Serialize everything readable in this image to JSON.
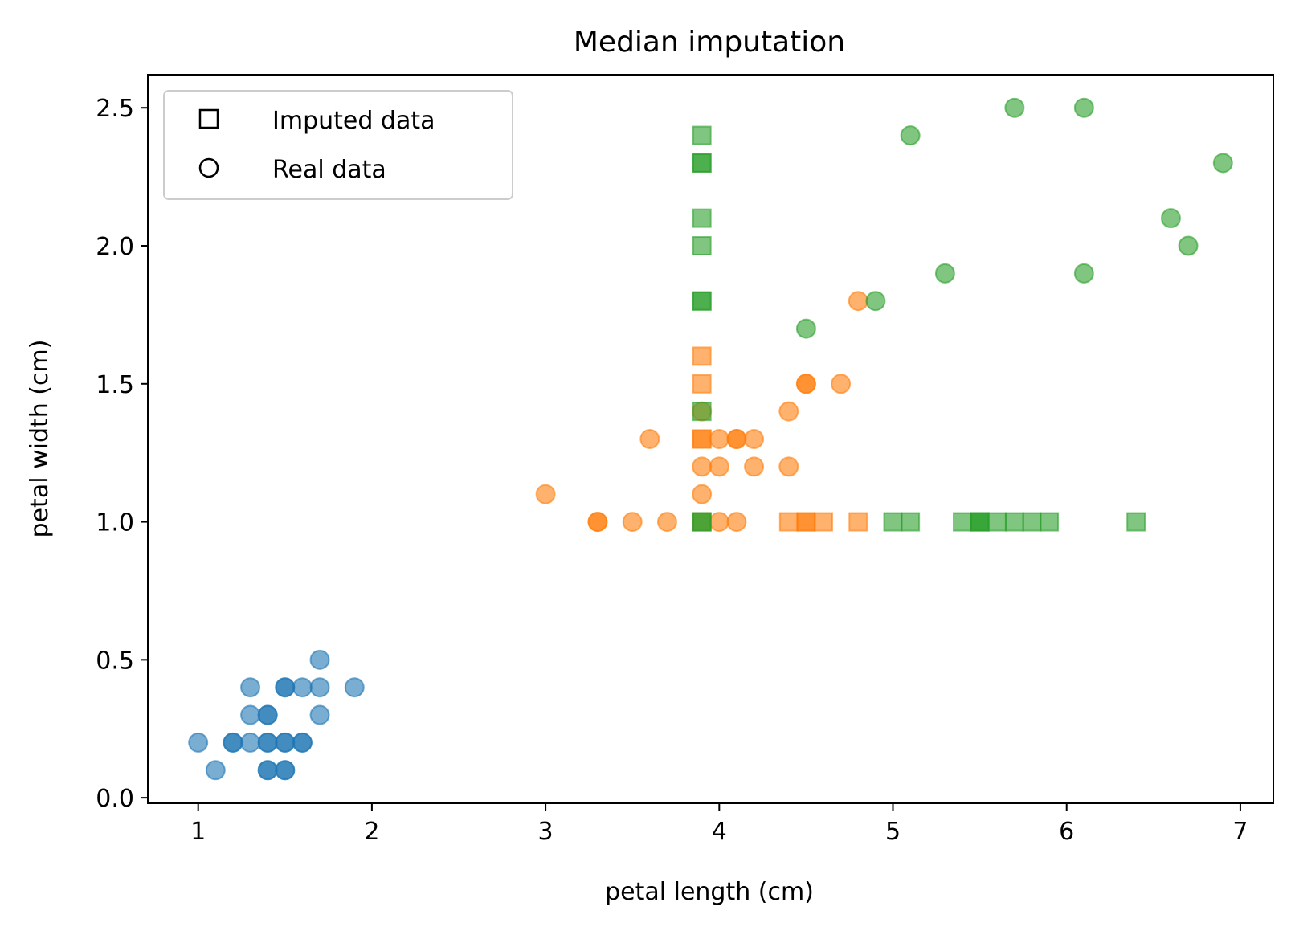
{
  "chart_data": {
    "type": "scatter",
    "title": "Median imputation",
    "xlabel": "petal length (cm)",
    "ylabel": "petal width (cm)",
    "xlim": [
      0.71,
      7.19
    ],
    "ylim": [
      -0.02,
      2.62
    ],
    "xticks": [
      1,
      2,
      3,
      4,
      5,
      6,
      7
    ],
    "yticks": [
      0.0,
      0.5,
      1.0,
      1.5,
      2.0,
      2.5
    ],
    "grid": false,
    "legend": {
      "location": "upper-left",
      "entries": [
        {
          "marker": "square",
          "label": "Imputed data"
        },
        {
          "marker": "circle",
          "label": "Real data"
        }
      ]
    },
    "colors": {
      "setosa": "#1f77b4",
      "versicolor": "#ff7f0e",
      "virginica": "#2ca02c"
    },
    "series": [
      {
        "marker": "circle",
        "color": "#1f77b4",
        "points": [
          [
            1.0,
            0.2
          ],
          [
            1.1,
            0.1
          ],
          [
            1.2,
            0.2
          ],
          [
            1.2,
            0.2
          ],
          [
            1.3,
            0.2
          ],
          [
            1.3,
            0.3
          ],
          [
            1.3,
            0.4
          ],
          [
            1.4,
            0.2
          ],
          [
            1.4,
            0.2
          ],
          [
            1.4,
            0.3
          ],
          [
            1.4,
            0.3
          ],
          [
            1.4,
            0.1
          ],
          [
            1.4,
            0.1
          ],
          [
            1.5,
            0.2
          ],
          [
            1.5,
            0.2
          ],
          [
            1.5,
            0.4
          ],
          [
            1.5,
            0.4
          ],
          [
            1.5,
            0.1
          ],
          [
            1.5,
            0.1
          ],
          [
            1.6,
            0.2
          ],
          [
            1.6,
            0.2
          ],
          [
            1.6,
            0.4
          ],
          [
            1.7,
            0.5
          ],
          [
            1.7,
            0.4
          ],
          [
            1.7,
            0.3
          ],
          [
            1.9,
            0.4
          ]
        ]
      },
      {
        "marker": "circle",
        "color": "#ff7f0e",
        "points": [
          [
            3.0,
            1.1
          ],
          [
            3.3,
            1.0
          ],
          [
            3.3,
            1.0
          ],
          [
            3.5,
            1.0
          ],
          [
            3.6,
            1.3
          ],
          [
            3.7,
            1.0
          ],
          [
            3.9,
            1.1
          ],
          [
            3.9,
            1.2
          ],
          [
            3.9,
            1.4
          ],
          [
            4.0,
            1.0
          ],
          [
            4.0,
            1.2
          ],
          [
            4.0,
            1.3
          ],
          [
            4.1,
            1.0
          ],
          [
            4.1,
            1.3
          ],
          [
            4.1,
            1.3
          ],
          [
            4.2,
            1.2
          ],
          [
            4.2,
            1.3
          ],
          [
            4.4,
            1.2
          ],
          [
            4.4,
            1.4
          ],
          [
            4.5,
            1.5
          ],
          [
            4.5,
            1.5
          ],
          [
            4.7,
            1.5
          ],
          [
            4.8,
            1.8
          ]
        ]
      },
      {
        "marker": "square",
        "color": "#ff7f0e",
        "points": [
          [
            3.9,
            1.6
          ],
          [
            3.9,
            1.5
          ],
          [
            3.9,
            1.3
          ],
          [
            3.9,
            1.3
          ],
          [
            3.9,
            1.0
          ],
          [
            4.4,
            1.0
          ],
          [
            4.5,
            1.0
          ],
          [
            4.5,
            1.0
          ],
          [
            4.6,
            1.0
          ],
          [
            4.8,
            1.0
          ]
        ]
      },
      {
        "marker": "circle",
        "color": "#2ca02c",
        "points": [
          [
            4.5,
            1.7
          ],
          [
            4.9,
            1.8
          ],
          [
            5.1,
            2.4
          ],
          [
            5.3,
            1.9
          ],
          [
            5.7,
            2.5
          ],
          [
            6.1,
            2.5
          ],
          [
            6.1,
            1.9
          ],
          [
            6.6,
            2.1
          ],
          [
            6.7,
            2.0
          ],
          [
            6.9,
            2.3
          ]
        ]
      },
      {
        "marker": "square",
        "color": "#2ca02c",
        "points": [
          [
            3.9,
            2.4
          ],
          [
            3.9,
            2.3
          ],
          [
            3.9,
            2.3
          ],
          [
            3.9,
            2.1
          ],
          [
            3.9,
            2.0
          ],
          [
            3.9,
            1.8
          ],
          [
            3.9,
            1.8
          ],
          [
            3.9,
            1.4
          ],
          [
            3.9,
            1.0
          ],
          [
            3.9,
            1.0
          ],
          [
            5.0,
            1.0
          ],
          [
            5.1,
            1.0
          ],
          [
            5.4,
            1.0
          ],
          [
            5.5,
            1.0
          ],
          [
            5.5,
            1.0
          ],
          [
            5.5,
            1.0
          ],
          [
            5.6,
            1.0
          ],
          [
            5.7,
            1.0
          ],
          [
            5.8,
            1.0
          ],
          [
            5.9,
            1.0
          ],
          [
            6.4,
            1.0
          ]
        ]
      }
    ]
  }
}
